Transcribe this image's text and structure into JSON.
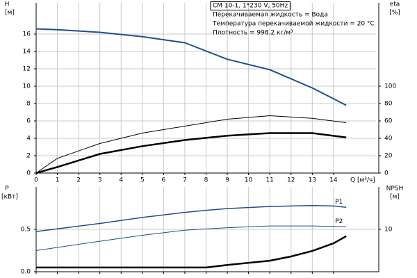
{
  "chart_data": [
    {
      "type": "line",
      "ylabel": "H",
      "ylabel_unit": "[м]",
      "y2label": "eta",
      "y2label_unit": "[%]",
      "xlabel": "Q [м³/ч]",
      "annotations": [
        "CM 10-1, 1*230 V, 50Hz",
        "Перекачиваемая жидкость = Вода",
        "Температура перекачиваемой жидкости = 20 °C",
        "Плотность = 998.2 кг/м³"
      ],
      "xlim": [
        0,
        16
      ],
      "xticks": [
        0,
        1,
        2,
        3,
        4,
        5,
        6,
        7,
        8,
        9,
        10,
        11,
        12,
        13,
        14
      ],
      "ylim": [
        0,
        19.6
      ],
      "yticks": [
        0,
        2,
        4,
        6,
        8,
        10,
        12,
        14,
        16
      ],
      "y2lim": [
        0,
        196
      ],
      "y2ticks": [
        0,
        20,
        40,
        60,
        80,
        100
      ],
      "grid": true,
      "x": [
        0,
        1,
        3,
        5,
        7,
        9,
        11,
        13,
        14.6
      ],
      "series": [
        {
          "color": "#1f4e8c",
          "width": 2,
          "values": [
            16.6,
            16.5,
            16.2,
            15.7,
            15.0,
            13.1,
            11.9,
            9.8,
            7.8
          ]
        },
        {
          "color": "#000000",
          "width": 1,
          "axis": "y2",
          "values": [
            0,
            17,
            34,
            46,
            54,
            62,
            66,
            63,
            58
          ]
        },
        {
          "color": "#000000",
          "width": 2.5,
          "axis": "y2",
          "values": [
            0,
            7,
            22,
            31,
            38,
            43,
            46,
            46,
            41
          ]
        }
      ]
    },
    {
      "type": "line",
      "ylabel": "P",
      "ylabel_unit": "[кВт]",
      "y2label": "NPSH",
      "y2label_unit": "[м]",
      "xlim": [
        0,
        16
      ],
      "xticks": [
        0,
        1,
        2,
        3,
        4,
        5,
        6,
        7,
        8,
        9,
        10,
        11,
        12,
        13,
        14
      ],
      "ylim": [
        0,
        1
      ],
      "yticks": [
        {
          "value": 0,
          "label": "0.0"
        },
        0.5
      ],
      "y2lim": [
        0,
        20
      ],
      "y2ticks": [
        10
      ],
      "grid": true,
      "x": [
        0,
        3,
        5,
        7,
        8,
        9,
        11,
        12,
        13,
        14,
        14.6
      ],
      "series": [
        {
          "name": "P1",
          "color": "#1f4e8c",
          "width": 1.5,
          "values": [
            0.475,
            0.57,
            0.64,
            0.7,
            0.725,
            0.745,
            0.77,
            0.775,
            0.78,
            0.775,
            0.76
          ]
        },
        {
          "name": "P2",
          "color": "#1f4e8c",
          "width": 1,
          "values": [
            0.25,
            0.36,
            0.43,
            0.49,
            0.505,
            0.52,
            0.54,
            0.54,
            0.54,
            0.535,
            0.53
          ]
        },
        {
          "color": "#000000",
          "width": 2.5,
          "axis": "y2",
          "values": [
            1.0,
            1.0,
            1.0,
            1.0,
            1.0,
            1.6,
            2.6,
            3.6,
            4.9,
            6.7,
            8.4
          ]
        }
      ]
    }
  ]
}
